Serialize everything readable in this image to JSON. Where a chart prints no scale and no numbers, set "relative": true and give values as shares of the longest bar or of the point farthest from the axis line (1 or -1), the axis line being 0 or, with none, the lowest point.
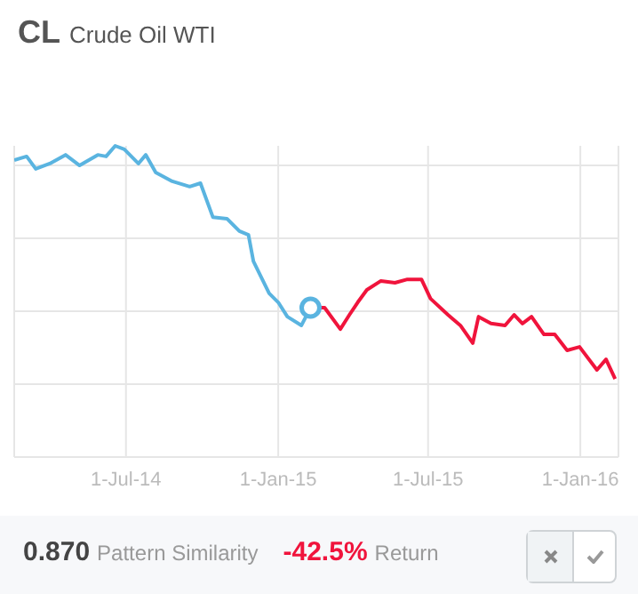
{
  "chart_data": {
    "type": "line",
    "title": "CL",
    "subtitle": "Crude Oil WTI",
    "relative": true,
    "grid": true,
    "xlim": [
      "2014-02-16",
      "2016-02-16"
    ],
    "xticks": [
      {
        "value": "2014-07-01",
        "label": "1-Jul-14"
      },
      {
        "value": "2015-01-01",
        "label": "1-Jan-15"
      },
      {
        "value": "2015-07-01",
        "label": "1-Jul-15"
      },
      {
        "value": "2016-01-01",
        "label": "1-Jan-16"
      }
    ],
    "series": [
      {
        "color": "#5ab4e0",
        "x": [
          "2014-02-16",
          "2014-03-03",
          "2014-03-14",
          "2014-03-31",
          "2014-04-19",
          "2014-05-06",
          "2014-05-28",
          "2014-06-07",
          "2014-06-18",
          "2014-06-29",
          "2014-07-16",
          "2014-07-25",
          "2014-08-06",
          "2014-08-26",
          "2014-09-16",
          "2014-09-29",
          "2014-10-14",
          "2014-10-31",
          "2014-11-15",
          "2014-11-26",
          "2014-12-02",
          "2014-12-21",
          "2015-01-01",
          "2015-01-12",
          "2015-01-29",
          "2015-02-09"
        ],
        "values": [
          0.954,
          0.966,
          0.926,
          0.943,
          0.971,
          0.937,
          0.971,
          0.966,
          1,
          0.989,
          0.943,
          0.971,
          0.914,
          0.886,
          0.869,
          0.88,
          0.771,
          0.766,
          0.726,
          0.714,
          0.629,
          0.526,
          0.497,
          0.451,
          0.423,
          0.48
        ]
      },
      {
        "color": "#f0143c",
        "x": [
          "2015-02-09",
          "2015-02-26",
          "2015-03-17",
          "2015-03-28",
          "2015-04-07",
          "2015-04-18",
          "2015-05-05",
          "2015-05-22",
          "2015-06-06",
          "2015-06-23",
          "2015-07-04",
          "2015-07-25",
          "2015-08-09",
          "2015-08-24",
          "2015-08-31",
          "2015-09-15",
          "2015-10-02",
          "2015-10-13",
          "2015-10-23",
          "2015-11-03",
          "2015-11-18",
          "2015-12-01",
          "2015-12-16",
          "2015-12-31",
          "2016-01-21",
          "2016-02-01",
          "2016-02-12"
        ],
        "values": [
          0.48,
          0.48,
          0.411,
          0.457,
          0.497,
          0.537,
          0.566,
          0.56,
          0.571,
          0.571,
          0.509,
          0.457,
          0.423,
          0.366,
          0.451,
          0.429,
          0.423,
          0.457,
          0.429,
          0.451,
          0.394,
          0.394,
          0.343,
          0.354,
          0.28,
          0.314,
          0.251
        ]
      },
      {
        "type": "scatter",
        "color": "#5ab4e0",
        "marker": "circle",
        "x": [
          "2015-02-09"
        ],
        "values": [
          0.48
        ]
      }
    ],
    "annotations": [
      "0.870",
      "Pattern Similarity",
      "-42.5%",
      "Return"
    ]
  }
}
